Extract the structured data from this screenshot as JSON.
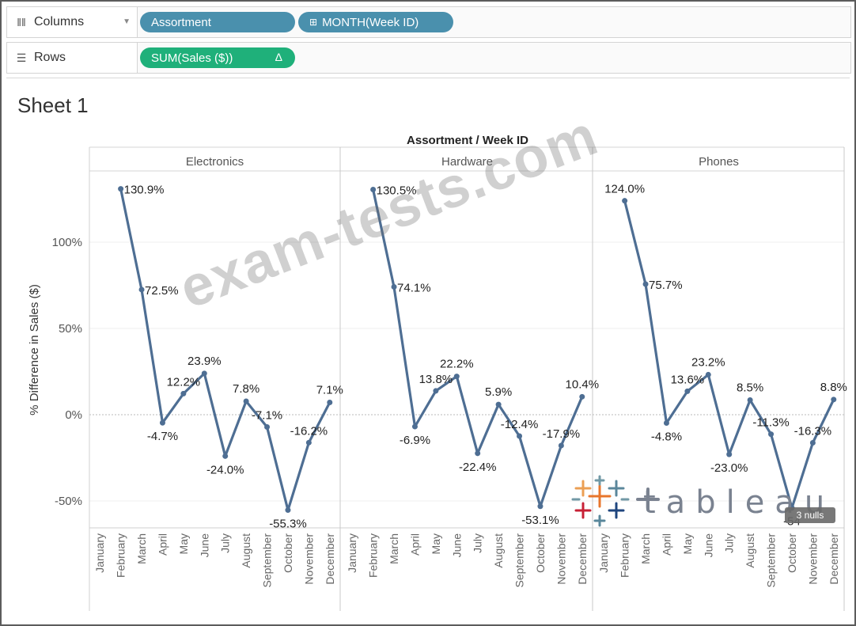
{
  "shelves": {
    "columns_label": "Columns",
    "rows_label": "Rows",
    "column_pills": [
      "Assortment",
      "MONTH(Week ID)"
    ],
    "row_pills": [
      "SUM(Sales ($))"
    ]
  },
  "sheet": {
    "title": "Sheet 1"
  },
  "watermark": "exam-tests.com",
  "logo": {
    "text": "tableau"
  },
  "nulls_indicator": "3 nulls",
  "chart_data": {
    "type": "line",
    "header_title": "Assortment / Week ID",
    "ylabel": "% Difference in Sales ($)",
    "ylim": [
      -65,
      140
    ],
    "yticks": [
      100,
      50,
      0,
      -50
    ],
    "ytick_labels": [
      "100%",
      "50%",
      "0%",
      "-50%"
    ],
    "categories": [
      "January",
      "February",
      "March",
      "April",
      "May",
      "June",
      "July",
      "August",
      "September",
      "October",
      "November",
      "December"
    ],
    "panels": [
      {
        "name": "Electronics",
        "values": [
          null,
          130.9,
          72.5,
          -4.7,
          12.2,
          23.9,
          -24.0,
          7.8,
          -7.1,
          -55.3,
          -16.2,
          7.1
        ],
        "labels": [
          "",
          "130.9%",
          "72.5%",
          "-4.7%",
          "12.2%",
          "23.9%",
          "-24.0%",
          "7.8%",
          "-7.1%",
          "-55.3%",
          "-16.2%",
          "7.1%"
        ]
      },
      {
        "name": "Hardware",
        "values": [
          null,
          130.5,
          74.1,
          -6.9,
          13.8,
          22.2,
          -22.4,
          5.9,
          -12.4,
          -53.1,
          -17.9,
          10.4
        ],
        "labels": [
          "",
          "130.5%",
          "74.1%",
          "-6.9%",
          "13.8%",
          "22.2%",
          "-22.4%",
          "5.9%",
          "-12.4%",
          "-53.1%",
          "-17.9%",
          "10.4%"
        ]
      },
      {
        "name": "Phones",
        "values": [
          null,
          124.0,
          75.7,
          -4.8,
          13.6,
          23.2,
          -23.0,
          8.5,
          -11.3,
          -54.0,
          -16.3,
          8.8
        ],
        "labels": [
          "",
          "124.0%",
          "75.7%",
          "-4.8%",
          "13.6%",
          "23.2%",
          "-23.0%",
          "8.5%",
          "-11.3%",
          "-54",
          "-16.3%",
          "8.8%"
        ]
      }
    ],
    "line_color": "#4e6e93",
    "grid": true
  }
}
